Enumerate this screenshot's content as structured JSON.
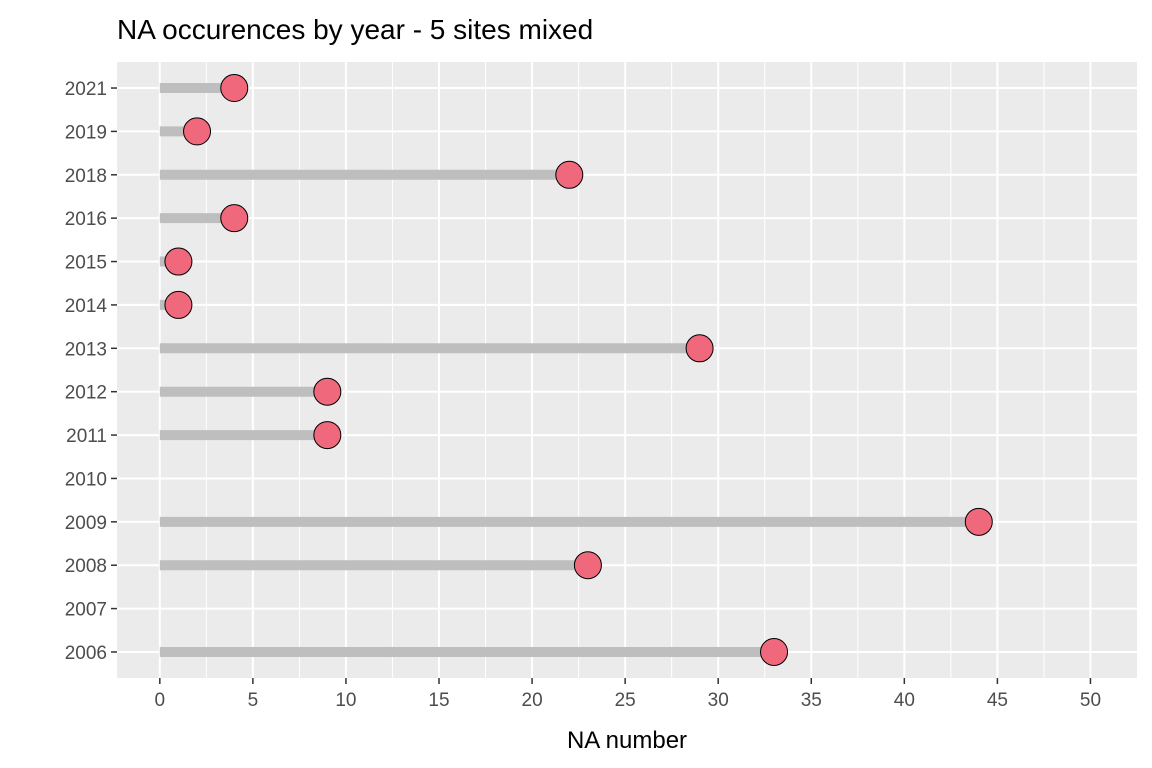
{
  "chart_data": {
    "type": "lollipop",
    "title": "NA occurences by year - 5 sites mixed",
    "xlabel": "NA number",
    "ylabel": "",
    "xlim": [
      -2.3,
      52.5
    ],
    "x_ticks": [
      0,
      5,
      10,
      15,
      20,
      25,
      30,
      35,
      40,
      45,
      50
    ],
    "categories": [
      "2006",
      "2007",
      "2008",
      "2009",
      "2010",
      "2011",
      "2012",
      "2013",
      "2014",
      "2015",
      "2016",
      "2018",
      "2019",
      "2021"
    ],
    "values": [
      33,
      0,
      23,
      44,
      0,
      9,
      9,
      29,
      1,
      1,
      4,
      22,
      2,
      4
    ],
    "grid": true,
    "legend": "none",
    "colors": {
      "panel": "#ebebeb",
      "grid": "#ffffff",
      "stem": "#bebebe",
      "point_fill": "#f0687b",
      "point_stroke": "#000000",
      "tick_text": "#4d4d4d"
    }
  }
}
